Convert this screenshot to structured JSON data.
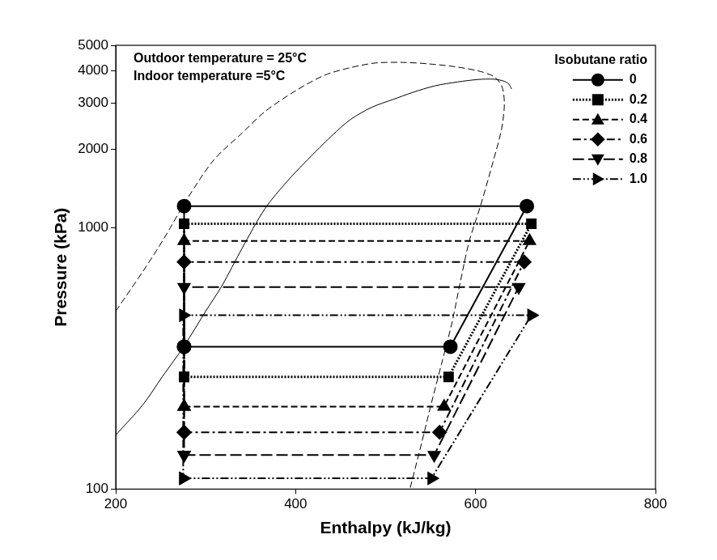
{
  "chart_data": {
    "type": "line",
    "annotations": [
      "Outdoor temperature = 25°C",
      "Indoor temperature =5°C"
    ],
    "x_label": "Enthalpy (kJ/kg)",
    "y_label": "Pressure (kPa)",
    "xlim": [
      200,
      800
    ],
    "xticks": [
      200,
      400,
      600,
      800
    ],
    "ylim": [
      100,
      5000
    ],
    "yticks": [
      100,
      1000,
      2000,
      3000,
      4000,
      5000
    ],
    "log": "y",
    "grid": false,
    "legend": "upper right",
    "legend_title": "Isobutane ratio",
    "series": [
      {
        "name": "0",
        "color": "#000000",
        "marker": "circle",
        "line_style": "solid",
        "x": [
          276,
          572,
          657,
          276,
          276
        ],
        "values": [
          351,
          351,
          1212,
          1212,
          351
        ]
      },
      {
        "name": "0.2",
        "color": "#000000",
        "marker": "square",
        "line_style": "dotted",
        "x": [
          276,
          570,
          662,
          276,
          276
        ],
        "values": [
          269,
          269,
          1037,
          1037,
          269
        ]
      },
      {
        "name": "0.4",
        "color": "#000000",
        "marker": "triangle",
        "line_style": "dashed",
        "x": [
          276,
          565,
          660,
          276,
          276
        ],
        "values": [
          207,
          207,
          892,
          892,
          207
        ]
      },
      {
        "name": "0.6",
        "color": "#000000",
        "marker": "diamond",
        "line_style": "dashdot",
        "x": [
          276,
          560,
          654,
          276,
          276
        ],
        "values": [
          165,
          165,
          741,
          741,
          165
        ]
      },
      {
        "name": "0.8",
        "color": "#000000",
        "marker": "triangle_down",
        "line_style": "longdash",
        "x": [
          276,
          554,
          648,
          276,
          276
        ],
        "values": [
          135,
          135,
          594,
          594,
          135
        ]
      },
      {
        "name": "1.0",
        "color": "#000000",
        "marker": "triangle_right",
        "line_style": "dashdotdot",
        "x": [
          275,
          551,
          662,
          275,
          275
        ],
        "values": [
          110,
          110,
          463,
          463,
          110
        ]
      },
      {
        "color": "#000000",
        "marker": "none",
        "line_style": "dashed",
        "x": [
          200,
          230,
          252,
          280,
          309,
          340,
          366,
          400,
          432,
          460,
          489,
          520,
          546,
          575,
          603,
          620,
          629,
          632,
          629,
          620,
          605,
          593,
          583,
          574,
          562,
          551,
          540,
          527
        ],
        "values": [
          480,
          680,
          892,
          1300,
          1820,
          2300,
          2790,
          3350,
          3840,
          4100,
          4280,
          4300,
          4250,
          4150,
          3990,
          3800,
          3500,
          3000,
          2400,
          1820,
          1200,
          890,
          620,
          437,
          300,
          214,
          150,
          100
        ]
      },
      {
        "color": "#000000",
        "marker": "none",
        "line_style": "solid",
        "x": [
          200,
          230,
          252,
          276,
          300,
          318,
          340,
          366,
          390,
          413,
          440,
          461,
          485,
          508,
          530,
          555,
          580,
          603,
          620,
          631,
          637,
          640
        ],
        "values": [
          161,
          210,
          270,
          353,
          480,
          600,
          830,
          1187,
          1500,
          1820,
          2250,
          2600,
          2900,
          3100,
          3300,
          3500,
          3620,
          3700,
          3710,
          3650,
          3550,
          3400
        ]
      }
    ]
  }
}
